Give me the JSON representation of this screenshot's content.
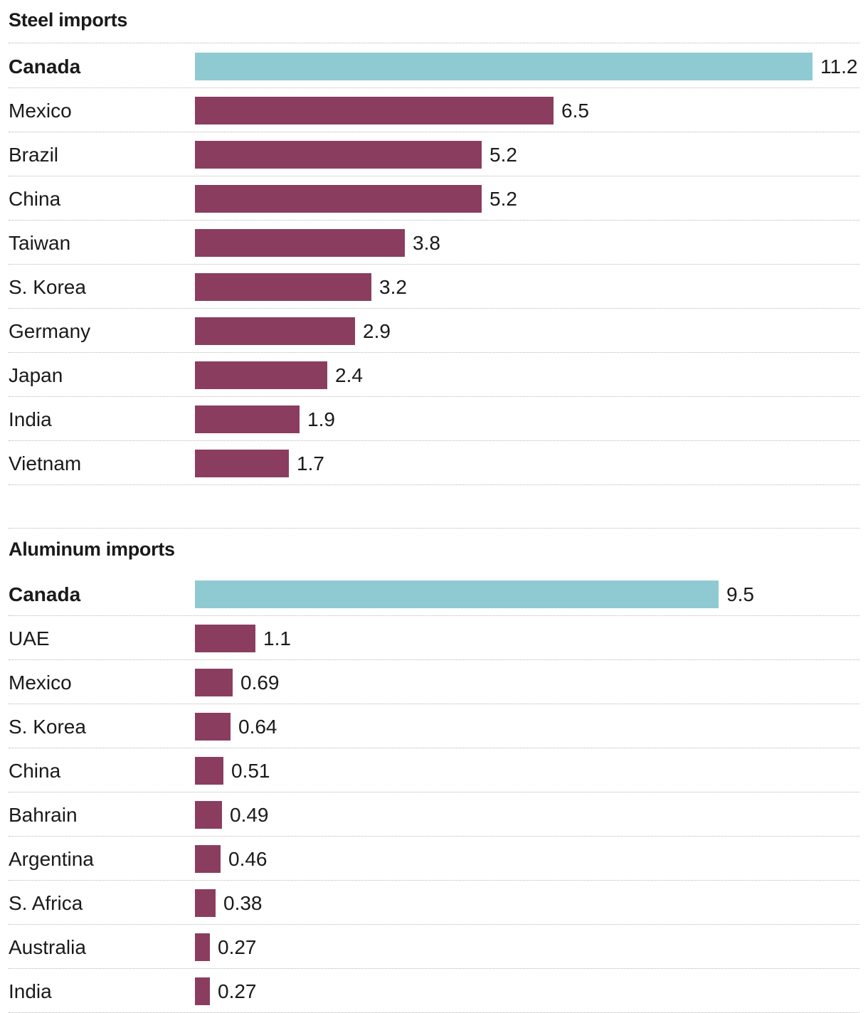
{
  "colors": {
    "highlight": "#8fcad3",
    "default": "#8b3d60"
  },
  "chart_data": [
    {
      "type": "bar",
      "orientation": "horizontal",
      "title": "Steel imports",
      "categories": [
        "Canada",
        "Mexico",
        "Brazil",
        "China",
        "Taiwan",
        "S. Korea",
        "Germany",
        "Japan",
        "India",
        "Vietnam"
      ],
      "values": [
        11.2,
        6.5,
        5.2,
        5.2,
        3.8,
        3.2,
        2.9,
        2.4,
        1.9,
        1.7
      ],
      "value_labels": [
        "11.2",
        "6.5",
        "5.2",
        "5.2",
        "3.8",
        "3.2",
        "2.9",
        "2.4",
        "1.9",
        "1.7"
      ],
      "highlight": "Canada",
      "xlim": [
        0,
        11.2
      ],
      "grid": false,
      "xlabel": "",
      "ylabel": ""
    },
    {
      "type": "bar",
      "orientation": "horizontal",
      "title": "Aluminum imports",
      "categories": [
        "Canada",
        "UAE",
        "Mexico",
        "S. Korea",
        "China",
        "Bahrain",
        "Argentina",
        "S. Africa",
        "Australia",
        "India"
      ],
      "values": [
        9.5,
        1.1,
        0.69,
        0.64,
        0.51,
        0.49,
        0.46,
        0.38,
        0.27,
        0.27
      ],
      "value_labels": [
        "9.5",
        "1.1",
        "0.69",
        "0.64",
        "0.51",
        "0.49",
        "0.46",
        "0.38",
        "0.27",
        "0.27"
      ],
      "highlight": "Canada",
      "xlim": [
        0,
        11.2
      ],
      "grid": false,
      "xlabel": "",
      "ylabel": ""
    }
  ]
}
